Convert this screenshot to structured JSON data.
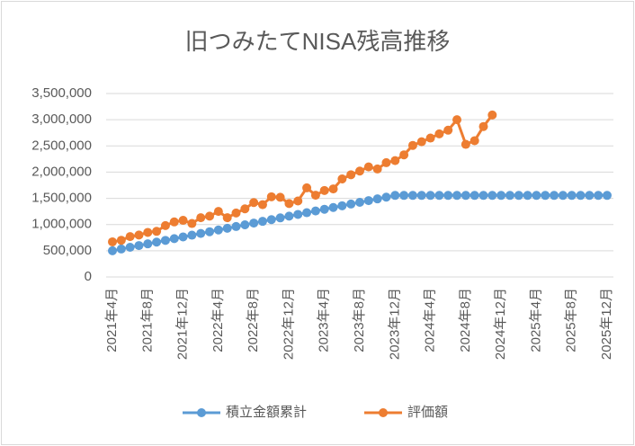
{
  "chart_data": {
    "type": "line",
    "title": "旧つみたてNISA残高推移",
    "categories": [
      "2021年4月",
      null,
      null,
      null,
      "2021年8月",
      null,
      null,
      null,
      "2021年12月",
      null,
      null,
      null,
      "2022年4月",
      null,
      null,
      null,
      "2022年8月",
      null,
      null,
      null,
      "2022年12月",
      null,
      null,
      null,
      "2023年4月",
      null,
      null,
      null,
      "2023年8月",
      null,
      null,
      null,
      "2023年12月",
      null,
      null,
      null,
      "2024年4月",
      null,
      null,
      null,
      "2024年8月",
      null,
      null,
      null,
      "2024年12月",
      null,
      null,
      null,
      "2025年4月",
      null,
      null,
      null,
      "2025年8月",
      null,
      null,
      null,
      "2025年12月"
    ],
    "series": [
      {
        "name": "積立金額累計",
        "color": "#5b9bd5",
        "values": [
          500000,
          533000,
          566000,
          599000,
          632000,
          665000,
          698000,
          731000,
          764000,
          797000,
          830000,
          863000,
          896000,
          929000,
          962000,
          995000,
          1028000,
          1061000,
          1094000,
          1127000,
          1160000,
          1193000,
          1226000,
          1259000,
          1292000,
          1325000,
          1358000,
          1391000,
          1424000,
          1457000,
          1490000,
          1523000,
          1556000,
          1556000,
          1556000,
          1556000,
          1556000,
          1556000,
          1556000,
          1556000,
          1556000,
          1556000,
          1556000,
          1556000,
          1556000,
          1556000,
          1556000,
          1556000,
          1556000,
          1556000,
          1556000,
          1556000,
          1556000,
          1556000,
          1556000,
          1556000,
          1556000
        ]
      },
      {
        "name": "評価額",
        "color": "#ed7d31",
        "values": [
          670000,
          700000,
          770000,
          800000,
          850000,
          870000,
          980000,
          1050000,
          1080000,
          1020000,
          1130000,
          1160000,
          1250000,
          1130000,
          1220000,
          1300000,
          1420000,
          1380000,
          1530000,
          1520000,
          1400000,
          1450000,
          1700000,
          1560000,
          1650000,
          1680000,
          1870000,
          1950000,
          2020000,
          2100000,
          2060000,
          2180000,
          2220000,
          2330000,
          2510000,
          2580000,
          2650000,
          2730000,
          2800000,
          3000000,
          2530000,
          2600000,
          2870000,
          3090000,
          null,
          null,
          null,
          null,
          null,
          null,
          null,
          null,
          null,
          null,
          null,
          null,
          null
        ]
      }
    ],
    "ylim": [
      0,
      3500000
    ],
    "yticks": [
      0,
      {
        "value": 500000,
        "label": "500,000"
      },
      {
        "value": 1000000,
        "label": "1,000,000"
      },
      {
        "value": 1500000,
        "label": "1,500,000"
      },
      {
        "value": 2000000,
        "label": "2,000,000"
      },
      {
        "value": 2500000,
        "label": "2,500,000"
      },
      {
        "value": 3000000,
        "label": "3,000,000"
      },
      {
        "value": 3500000,
        "label": "3,500,000"
      }
    ],
    "grid": true,
    "legend": "bottom"
  }
}
